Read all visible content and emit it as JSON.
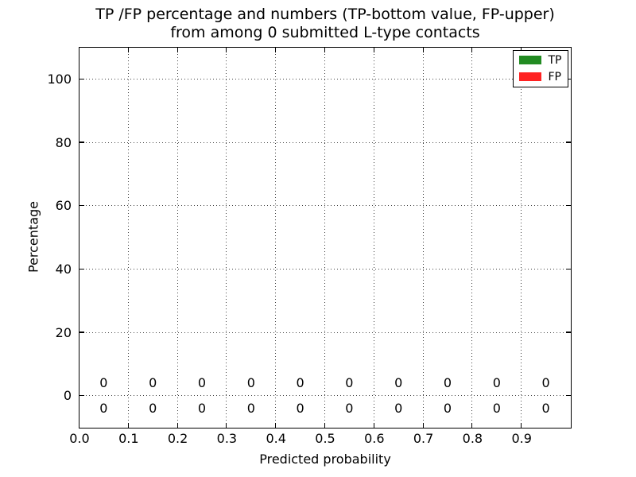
{
  "chart_data": {
    "type": "bar",
    "stacked": true,
    "title_line1": "TP /FP percentage and numbers (TP-bottom value, FP-upper)",
    "title_line2": "from among 0 submitted L-type contacts",
    "xlabel": "Predicted probability",
    "ylabel": "Percentage",
    "xlim": [
      0.0,
      1.0
    ],
    "ylim": [
      -10,
      110
    ],
    "xticks": [
      0.0,
      0.1,
      0.2,
      0.3,
      0.4,
      0.5,
      0.6,
      0.7,
      0.8,
      0.9
    ],
    "xtick_labels": [
      "0.0",
      "0.1",
      "0.2",
      "0.3",
      "0.4",
      "0.5",
      "0.6",
      "0.7",
      "0.8",
      "0.9"
    ],
    "yticks": [
      0,
      20,
      40,
      60,
      80,
      100
    ],
    "ytick_labels": [
      "0",
      "20",
      "40",
      "60",
      "80",
      "100"
    ],
    "grid": true,
    "grid_style": "dotted",
    "legend_position": "upper right",
    "bin_centers": [
      0.05,
      0.15,
      0.25,
      0.35,
      0.45,
      0.55,
      0.65,
      0.75,
      0.85,
      0.95
    ],
    "series": [
      {
        "name": "TP",
        "color": "#228b22",
        "values": [
          0,
          0,
          0,
          0,
          0,
          0,
          0,
          0,
          0,
          0
        ]
      },
      {
        "name": "FP",
        "color": "#ff2222",
        "values": [
          0,
          0,
          0,
          0,
          0,
          0,
          0,
          0,
          0,
          0
        ]
      }
    ],
    "bar_labels": {
      "upper_row": {
        "series": "FP",
        "y": 4,
        "values": [
          "0",
          "0",
          "0",
          "0",
          "0",
          "0",
          "0",
          "0",
          "0",
          "0"
        ]
      },
      "lower_row": {
        "series": "TP",
        "y": -4,
        "values": [
          "0",
          "0",
          "0",
          "0",
          "0",
          "0",
          "0",
          "0",
          "0",
          "0"
        ]
      }
    }
  }
}
